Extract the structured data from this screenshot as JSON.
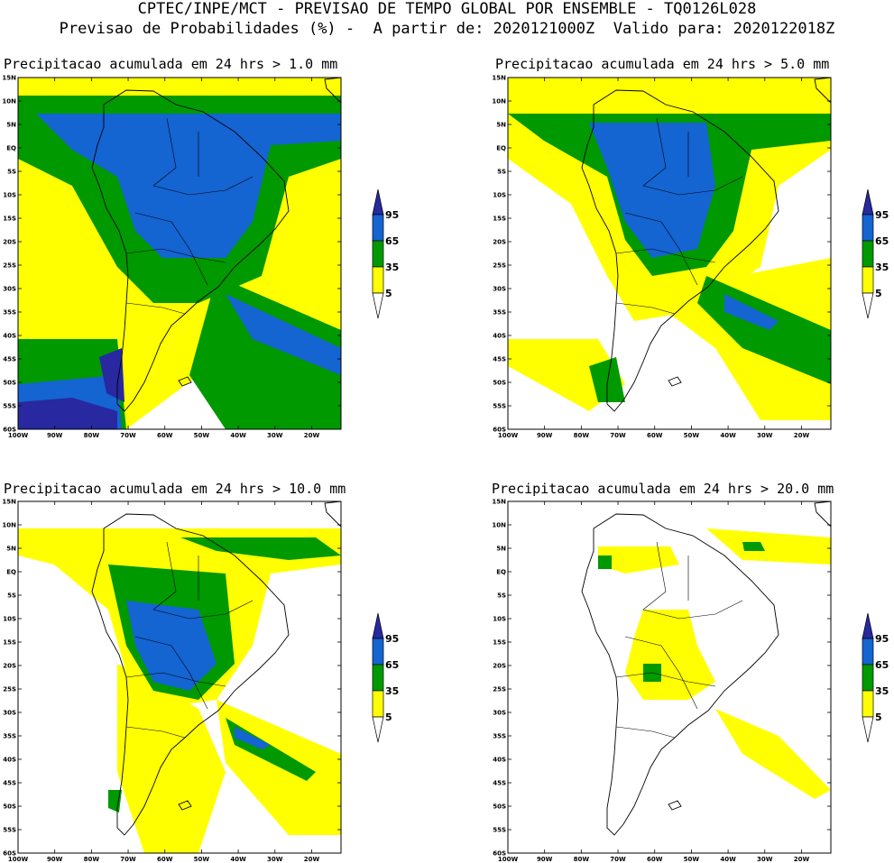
{
  "header": {
    "line1": "CPTEC/INPE/MCT - PREVISAO DE TEMPO GLOBAL POR ENSEMBLE - TQ0126L028",
    "line2": "Previsao de Probabilidades (%) -  A partir de: 2020121000Z  Valido para: 2020122018Z"
  },
  "axes": {
    "lat_labels": [
      "15N",
      "10N",
      "5N",
      "EQ",
      "5S",
      "10S",
      "15S",
      "20S",
      "25S",
      "30S",
      "35S",
      "40S",
      "45S",
      "50S",
      "55S",
      "60S"
    ],
    "lon_labels": [
      "100W",
      "90W",
      "80W",
      "70W",
      "60W",
      "50W",
      "40W",
      "30W",
      "20W"
    ]
  },
  "colors": {
    "level_5": "#ffff00",
    "level_35": "#009900",
    "level_65": "#1464d2",
    "level_95": "#2828a0",
    "coast": "#000000"
  },
  "legend": {
    "labels": [
      "95",
      "65",
      "35",
      "5"
    ]
  },
  "panels": [
    {
      "title": "Precipitacao acumulada em 24 hrs > 1.0 mm"
    },
    {
      "title": "Precipitacao acumulada em 24 hrs > 5.0 mm"
    },
    {
      "title": "Precipitacao acumulada em 24 hrs > 10.0 mm"
    },
    {
      "title": "Precipitacao acumulada em 24 hrs > 20.0 mm"
    }
  ]
}
